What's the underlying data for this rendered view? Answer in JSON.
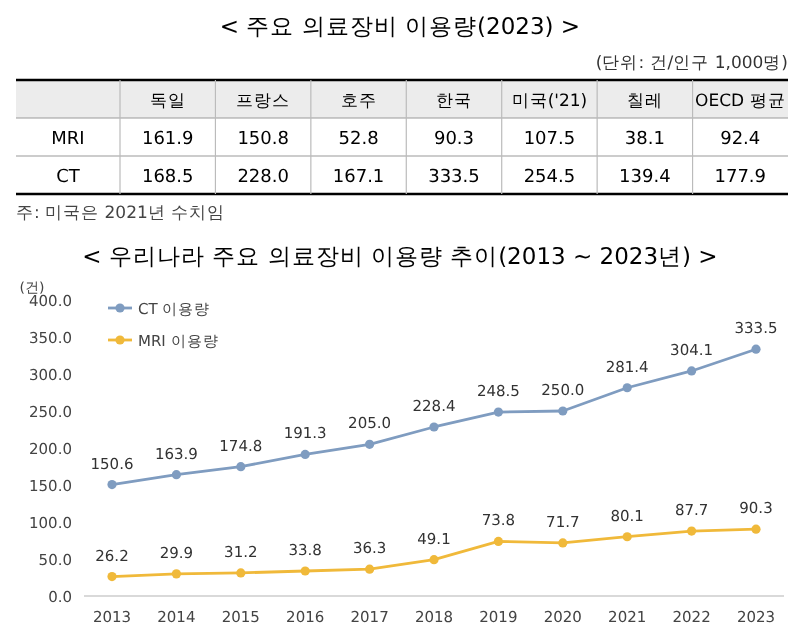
{
  "chart_data": [
    {
      "type": "other",
      "title": "< 주요 의료장비 이용량(2023) >",
      "subtitle": "(단위: 건/인구 1,000명)",
      "categories": [
        "독일",
        "프랑스",
        "호주",
        "한국",
        "미국('21)",
        "칠레",
        "OECD 평균"
      ],
      "series": [
        {
          "name": "MRI",
          "values": [
            161.9,
            150.8,
            52.8,
            90.3,
            107.5,
            38.1,
            92.4
          ],
          "value_labels": [
            "161.9",
            "150.8",
            "52.8",
            "90.3",
            "107.5",
            "38.1",
            "92.4"
          ]
        },
        {
          "name": "CT",
          "values": [
            168.5,
            228.0,
            167.1,
            333.5,
            254.5,
            139.4,
            177.9
          ],
          "value_labels": [
            "168.5",
            "228.0",
            "167.1",
            "333.5",
            "254.5",
            "139.4",
            "177.9"
          ]
        }
      ],
      "annotations": [
        "주: 미국은 2021년 수치임"
      ]
    },
    {
      "type": "line",
      "title": "< 우리나라 주요 의료장비 이용량 추이(2013 ~ 2023년) >",
      "ylabel": "(건)",
      "categories": [
        "2013",
        "2014",
        "2015",
        "2016",
        "2017",
        "2018",
        "2019",
        "2020",
        "2021",
        "2022",
        "2023"
      ],
      "series": [
        {
          "name": "CT 이용량",
          "color": "#7f9cc0",
          "values": [
            150.6,
            163.9,
            174.8,
            191.3,
            205.0,
            228.4,
            248.5,
            250.0,
            281.4,
            304.1,
            333.5
          ],
          "value_labels": [
            "150.6",
            "163.9",
            "174.8",
            "191.3",
            "205.0",
            "228.4",
            "248.5",
            "250.0",
            "281.4",
            "304.1",
            "333.5"
          ]
        },
        {
          "name": "MRI 이용량",
          "color": "#f0b93a",
          "values": [
            26.2,
            29.9,
            31.2,
            33.8,
            36.3,
            49.1,
            73.8,
            71.7,
            80.1,
            87.7,
            90.3
          ],
          "value_labels": [
            "26.2",
            "29.9",
            "31.2",
            "33.8",
            "36.3",
            "49.1",
            "73.8",
            "71.7",
            "80.1",
            "87.7",
            "90.3"
          ]
        }
      ],
      "ylim": [
        0,
        400
      ],
      "yticks": [
        {
          "value": 0,
          "label": "0.0"
        },
        {
          "value": 50,
          "label": "50.0"
        },
        {
          "value": 100,
          "label": "100.0"
        },
        {
          "value": 150,
          "label": "150.0"
        },
        {
          "value": 200,
          "label": "200.0"
        },
        {
          "value": 250,
          "label": "250.0"
        },
        {
          "value": 300,
          "label": "300.0"
        },
        {
          "value": 350,
          "label": "350.0"
        },
        {
          "value": 400,
          "label": "400.0"
        }
      ],
      "legend": "top left",
      "marker": "circle",
      "line_style": "solid"
    }
  ]
}
